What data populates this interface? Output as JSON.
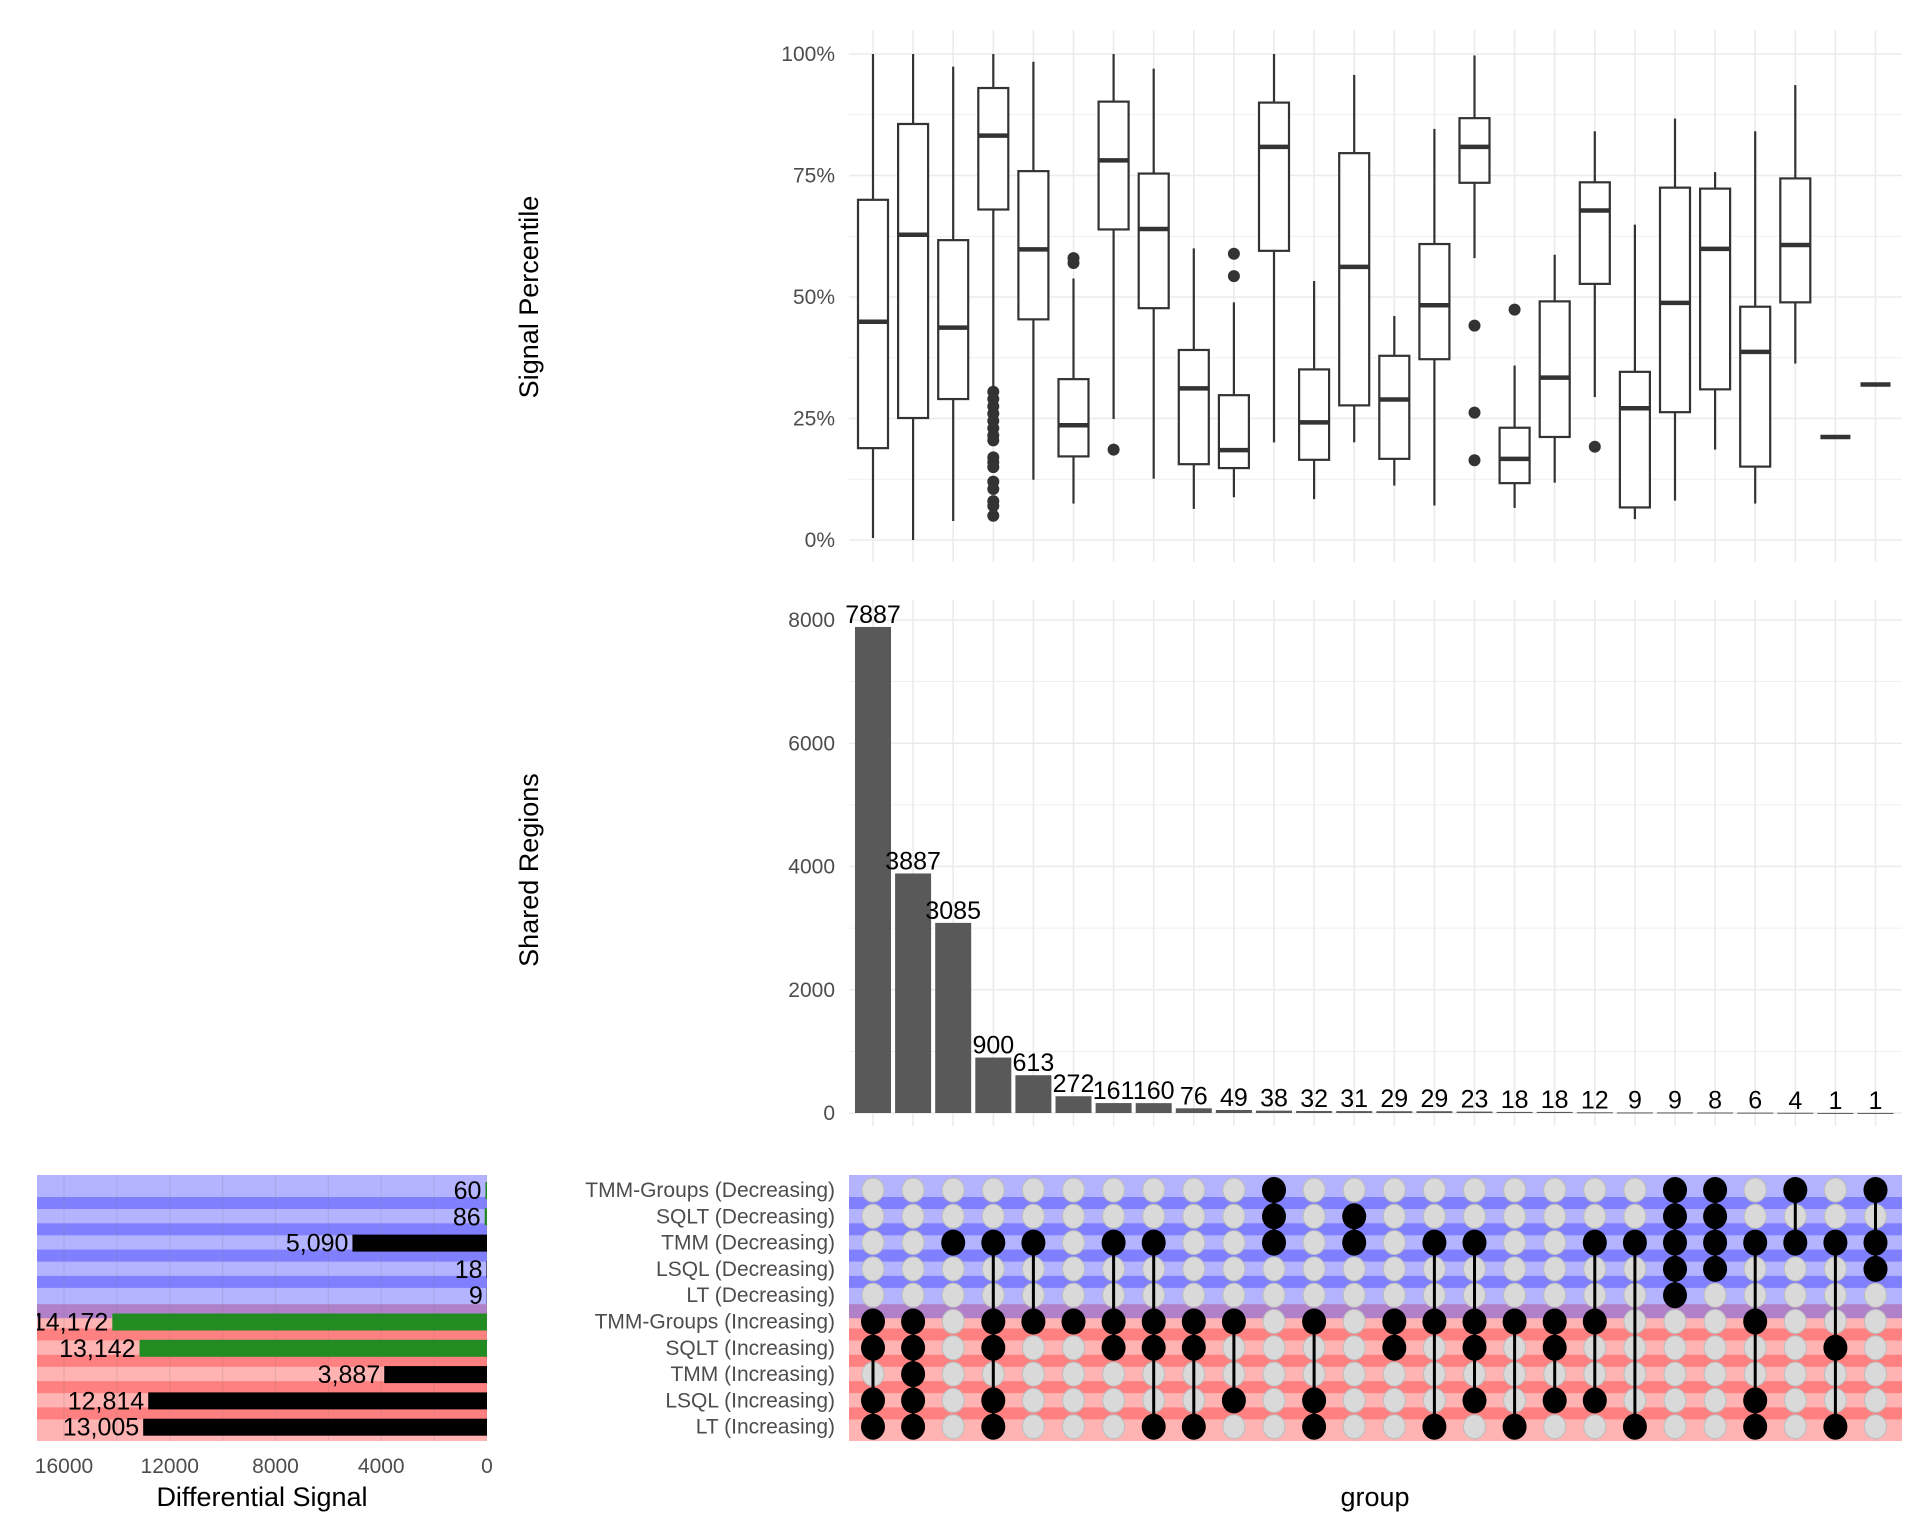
{
  "chart_data": [
    {
      "type": "box",
      "ylabel": "Signal Percentile",
      "ylim": [
        0,
        100
      ],
      "yticks": [
        "0%",
        "25%",
        "50%",
        "75%",
        "100%"
      ],
      "grid": true,
      "boxes": [
        {
          "min": 0.4,
          "q1": 18.9,
          "median": 44.9,
          "q3": 70.0,
          "max": 100,
          "outliers": []
        },
        {
          "min": 0,
          "q1": 25.1,
          "median": 62.8,
          "q3": 85.6,
          "max": 100,
          "outliers": []
        },
        {
          "min": 3.9,
          "q1": 29.0,
          "median": 43.7,
          "q3": 61.7,
          "max": 97.4,
          "outliers": []
        },
        {
          "min": 31.5,
          "q1": 68.0,
          "median": 83.2,
          "q3": 93.0,
          "max": 100,
          "outliers": [
            30.5,
            29,
            27.5,
            26,
            24.5,
            23,
            21.5,
            20.5,
            17,
            16,
            15,
            12,
            10.5,
            8,
            7,
            5
          ]
        },
        {
          "min": 12.4,
          "q1": 45.4,
          "median": 59.8,
          "q3": 75.9,
          "max": 98.4,
          "outliers": []
        },
        {
          "min": 7.5,
          "q1": 17.2,
          "median": 23.6,
          "q3": 33.1,
          "max": 53.8,
          "outliers": [
            57,
            58
          ]
        },
        {
          "min": 24.9,
          "q1": 63.9,
          "median": 78.1,
          "q3": 90.2,
          "max": 100,
          "outliers": [
            18.6
          ]
        },
        {
          "min": 12.6,
          "q1": 47.7,
          "median": 64.0,
          "q3": 75.4,
          "max": 97.0,
          "outliers": []
        },
        {
          "min": 6.4,
          "q1": 15.6,
          "median": 31.2,
          "q3": 39.1,
          "max": 60.0,
          "outliers": []
        },
        {
          "min": 8.8,
          "q1": 14.8,
          "median": 18.5,
          "q3": 29.8,
          "max": 48.9,
          "outliers": [
            58.9,
            54.3
          ]
        },
        {
          "min": 20.1,
          "q1": 59.5,
          "median": 80.9,
          "q3": 90.0,
          "max": 100,
          "outliers": []
        },
        {
          "min": 8.4,
          "q1": 16.5,
          "median": 24.2,
          "q3": 35.1,
          "max": 53.3,
          "outliers": []
        },
        {
          "min": 20.1,
          "q1": 27.7,
          "median": 56.2,
          "q3": 79.6,
          "max": 95.7,
          "outliers": []
        },
        {
          "min": 11.2,
          "q1": 16.7,
          "median": 28.9,
          "q3": 37.9,
          "max": 46.1,
          "outliers": []
        },
        {
          "min": 7.1,
          "q1": 37.2,
          "median": 48.3,
          "q3": 60.9,
          "max": 84.6,
          "outliers": []
        },
        {
          "min": 58.0,
          "q1": 73.5,
          "median": 80.9,
          "q3": 86.8,
          "max": 99.7,
          "outliers": [
            44.1,
            26.2,
            16.4
          ]
        },
        {
          "min": 6.6,
          "q1": 11.7,
          "median": 16.7,
          "q3": 23.1,
          "max": 35.9,
          "outliers": [
            47.4
          ]
        },
        {
          "min": 11.8,
          "q1": 21.2,
          "median": 33.4,
          "q3": 49.1,
          "max": 58.7,
          "outliers": []
        },
        {
          "min": 29.4,
          "q1": 52.7,
          "median": 67.8,
          "q3": 73.6,
          "max": 84.1,
          "outliers": [
            19.2
          ]
        },
        {
          "min": 4.3,
          "q1": 6.7,
          "median": 27.1,
          "q3": 34.6,
          "max": 64.9,
          "outliers": []
        },
        {
          "min": 8.1,
          "q1": 26.3,
          "median": 48.8,
          "q3": 72.5,
          "max": 86.7,
          "outliers": []
        },
        {
          "min": 18.6,
          "q1": 31.0,
          "median": 59.9,
          "q3": 72.3,
          "max": 75.7,
          "outliers": []
        },
        {
          "min": 7.5,
          "q1": 15.1,
          "median": 38.7,
          "q3": 48.0,
          "max": 84.1,
          "outliers": []
        },
        {
          "min": 36.3,
          "q1": 48.9,
          "median": 60.7,
          "q3": 74.4,
          "max": 93.6,
          "outliers": []
        },
        {
          "min": 21.2,
          "q1": 21.2,
          "median": 21.2,
          "q3": 21.2,
          "max": 21.2,
          "outliers": []
        },
        {
          "min": 32.0,
          "q1": 32.0,
          "median": 32.0,
          "q3": 32.0,
          "max": 32.0,
          "outliers": []
        }
      ]
    },
    {
      "type": "bar",
      "ylabel": "Shared Regions",
      "ylim": [
        0,
        8000
      ],
      "yticks": [
        "0",
        "2000",
        "4000",
        "6000",
        "8000"
      ],
      "grid": true,
      "bar_color": "#595959",
      "values": [
        7887,
        3887,
        3085,
        900,
        613,
        272,
        161,
        160,
        76,
        49,
        38,
        32,
        31,
        29,
        29,
        23,
        18,
        18,
        12,
        9,
        9,
        8,
        6,
        4,
        1,
        1
      ],
      "labels": [
        "7887",
        "3887",
        "3085",
        "900",
        "613",
        "272",
        "161",
        "160",
        "76",
        "49",
        "38",
        "32",
        "31",
        "29",
        "29",
        "23",
        "18",
        "18",
        "12",
        "9",
        "9",
        "8",
        "6",
        "4",
        "1",
        "1"
      ]
    },
    {
      "type": "matrix",
      "xlabel": "group",
      "sets": [
        "TMM-Groups (Decreasing)",
        "SQLT (Decreasing)",
        "TMM (Decreasing)",
        "LSQL (Decreasing)",
        "LT (Decreasing)",
        "TMM-Groups (Increasing)",
        "SQLT (Increasing)",
        "TMM (Increasing)",
        "LSQL (Increasing)",
        "LT (Increasing)"
      ],
      "memberships": [
        [
          5,
          6,
          8,
          9
        ],
        [
          5,
          6,
          7,
          8,
          9
        ],
        [
          2
        ],
        [
          2,
          5,
          6,
          8,
          9
        ],
        [
          2,
          5
        ],
        [
          5
        ],
        [
          2,
          5,
          6
        ],
        [
          2,
          5,
          6,
          9
        ],
        [
          5,
          6,
          9
        ],
        [
          5,
          8
        ],
        [
          0,
          1,
          2
        ],
        [
          5,
          8,
          9
        ],
        [
          1,
          2
        ],
        [
          5,
          6
        ],
        [
          2,
          5,
          9
        ],
        [
          2,
          5,
          6,
          8
        ],
        [
          5,
          9
        ],
        [
          5,
          6,
          8
        ],
        [
          2,
          5,
          8
        ],
        [
          2,
          9
        ],
        [
          0,
          1,
          2,
          3,
          4
        ],
        [
          0,
          1,
          2,
          3
        ],
        [
          2,
          5,
          8,
          9
        ],
        [
          0,
          2
        ],
        [
          2,
          6,
          9
        ],
        [
          0,
          2,
          3
        ]
      ],
      "colors": {
        "decreasing_light": "#b3b3ff",
        "decreasing_dark": "#8080ff",
        "boundary": "#b080c8",
        "increasing_light": "#ffb3b3",
        "increasing_dark": "#ff8080",
        "active_dot": "#000000",
        "inactive_dot": "#d9d9d9"
      }
    },
    {
      "type": "horizontal_bar",
      "xlabel": "Differential Signal",
      "xlim": [
        16000,
        0
      ],
      "xticks": [
        "16000",
        "12000",
        "8000",
        "4000",
        "0"
      ],
      "values": [
        60,
        86,
        5090,
        18,
        9,
        14172,
        13142,
        3887,
        12814,
        13005
      ],
      "labels": [
        "60",
        "86",
        "5,090",
        "18",
        "9",
        "14,172",
        "13,142",
        "3,887",
        "12,814",
        "13,005"
      ],
      "bar_colors": [
        "#228b22",
        "#228b22",
        "#000000",
        "#000000",
        "#000000",
        "#228b22",
        "#228b22",
        "#000000",
        "#000000",
        "#000000"
      ]
    }
  ]
}
